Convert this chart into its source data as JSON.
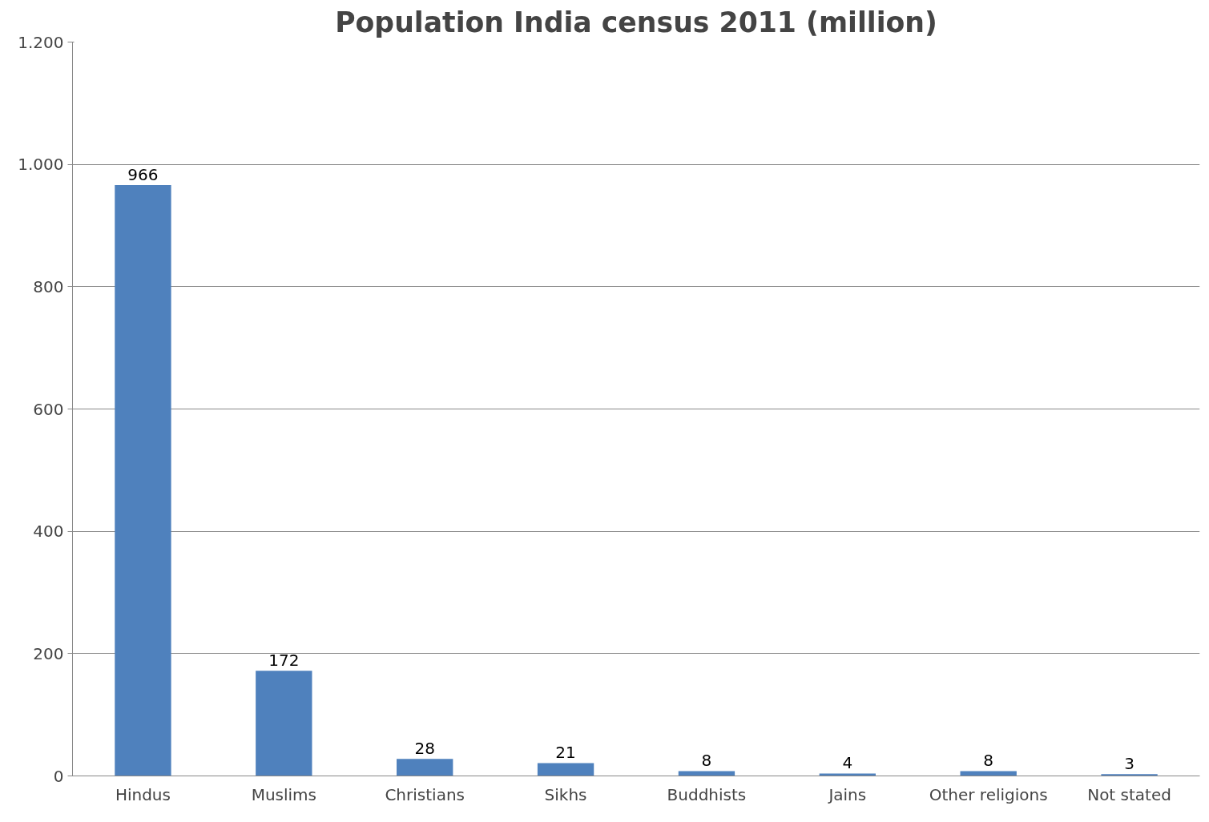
{
  "chart_data": {
    "type": "bar",
    "title": "Population India census 2011 (million)",
    "categories": [
      "Hindus",
      "Muslims",
      "Christians",
      "Sikhs",
      "Buddhists",
      "Jains",
      "Other religions",
      "Not stated"
    ],
    "values": [
      966,
      172,
      28,
      21,
      8,
      4,
      8,
      3
    ],
    "color": "#4f81bd",
    "ylim": [
      0,
      1200
    ],
    "yticks": [
      0,
      200,
      400,
      600,
      800,
      {
        "value": 1000,
        "label": "1.000"
      },
      {
        "value": 1200,
        "label": "1.200"
      }
    ],
    "grid": "y",
    "data_labels": true
  }
}
